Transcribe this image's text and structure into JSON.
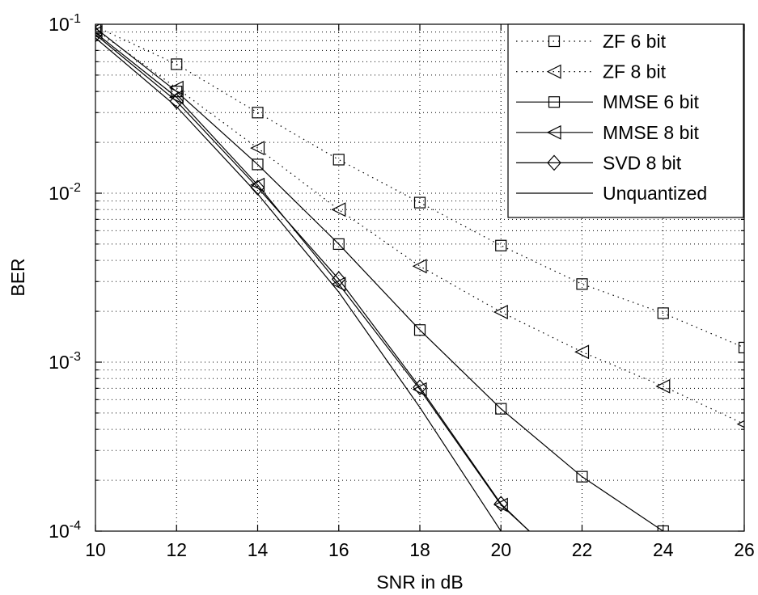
{
  "chart_data": {
    "type": "line",
    "title": "",
    "xlabel": "SNR in dB",
    "ylabel": "BER",
    "xlim": [
      10,
      26
    ],
    "ylim": [
      0.0001,
      0.1
    ],
    "yscale": "log",
    "grid": true,
    "legend_position": "top-right",
    "x_ticks": [
      "10",
      "12",
      "14",
      "16",
      "18",
      "20",
      "22",
      "24",
      "26"
    ],
    "y_ticks": [
      {
        "base": "10",
        "exp": "-4"
      },
      {
        "base": "10",
        "exp": "-3"
      },
      {
        "base": "10",
        "exp": "-2"
      },
      {
        "base": "10",
        "exp": "-1"
      }
    ],
    "series": [
      {
        "name": "ZF 6 bit",
        "marker": "square",
        "line": "dotted",
        "x": [
          10,
          12,
          14,
          16,
          18,
          20,
          22,
          24,
          26
        ],
        "y": [
          0.097,
          0.058,
          0.03,
          0.0158,
          0.0088,
          0.0049,
          0.0029,
          0.00195,
          0.00122
        ]
      },
      {
        "name": "ZF 8 bit",
        "marker": "triangle-left",
        "line": "dotted",
        "x": [
          10,
          12,
          14,
          16,
          18,
          20,
          22,
          24,
          26
        ],
        "y": [
          0.093,
          0.042,
          0.0185,
          0.008,
          0.0037,
          0.00198,
          0.00115,
          0.00072,
          0.00043
        ]
      },
      {
        "name": "MMSE 6 bit",
        "marker": "square",
        "line": "solid",
        "x": [
          10,
          12,
          14,
          16,
          18,
          20,
          22,
          24
        ],
        "y": [
          0.095,
          0.04,
          0.0148,
          0.005,
          0.00155,
          0.00053,
          0.00021,
          0.0001
        ]
      },
      {
        "name": "MMSE 8 bit",
        "marker": "triangle-left",
        "line": "solid",
        "x": [
          10,
          12,
          14,
          16,
          18,
          20,
          20.7
        ],
        "y": [
          0.089,
          0.037,
          0.0112,
          0.0029,
          0.00069,
          0.000143,
          0.0001
        ]
      },
      {
        "name": "SVD 8 bit",
        "marker": "diamond",
        "line": "solid",
        "x": [
          10,
          12,
          14,
          16,
          18,
          20,
          20.7
        ],
        "y": [
          0.087,
          0.035,
          0.0108,
          0.0031,
          0.00071,
          0.000145,
          0.0001
        ]
      },
      {
        "name": "Unquantized",
        "marker": "none",
        "line": "solid",
        "x": [
          10,
          12,
          14,
          16,
          18,
          20
        ],
        "y": [
          0.083,
          0.0325,
          0.0099,
          0.0026,
          0.00054,
          0.0001
        ]
      }
    ]
  }
}
